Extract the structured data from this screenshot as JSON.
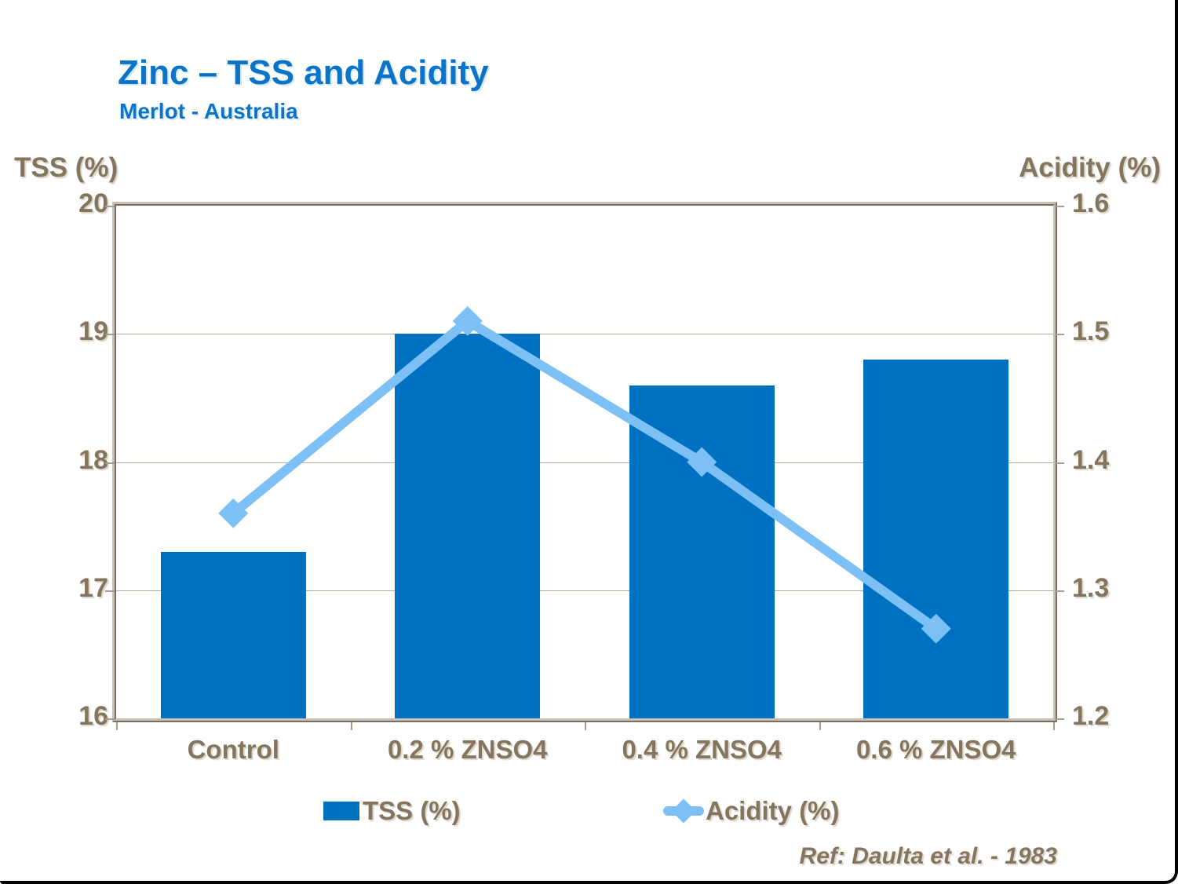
{
  "slide": {
    "title": "Zinc – TSS and Acidity",
    "subtitle": "Merlot - Australia",
    "ref": "Ref: Daulta et al. - 1983"
  },
  "chart_data": {
    "type": "bar",
    "subtype": "bar+line combo, dual axis",
    "title": "Zinc – TSS and Acidity",
    "subtitle": "Merlot - Australia",
    "categories": [
      "Control",
      "0.2 % ZNSO4",
      "0.4 % ZNSO4",
      "0.6 % ZNSO4"
    ],
    "series": [
      {
        "name": "TSS (%)",
        "type": "bar",
        "axis": "left",
        "values": [
          17.3,
          19.0,
          18.6,
          18.8
        ],
        "color": "#0070C0"
      },
      {
        "name": "Acidity (%)",
        "type": "line",
        "axis": "right",
        "marker": "diamond",
        "values": [
          1.36,
          1.51,
          1.4,
          1.27
        ],
        "color": "#7cc0f6"
      }
    ],
    "left_axis": {
      "label": "TSS (%)",
      "min": 16,
      "max": 20,
      "ticks": [
        "20",
        "19",
        "18",
        "17",
        "16"
      ]
    },
    "right_axis": {
      "label": "Acidity (%)",
      "min": 1.2,
      "max": 1.6,
      "ticks": [
        "1.6",
        "1.5",
        "1.4",
        "1.3",
        "1.2"
      ]
    },
    "grid": "horizontal gridlines on",
    "legend_position": "bottom",
    "legend": [
      {
        "label": "TSS (%)",
        "swatch": "bar-square",
        "color": "#0070C0"
      },
      {
        "label": "Acidity (%)",
        "swatch": "line-diamond",
        "color": "#7cc0f6"
      }
    ],
    "annotation": "Ref: Daulta et al. - 1983"
  },
  "colors": {
    "title_blue": "#0b74c9",
    "bar_blue": "#0070C0",
    "line_light_blue": "#7cc0f6",
    "axis_text_brown": "#85755e",
    "frame_tan": "#b3a89a",
    "slide_border_black": "#000000"
  },
  "icons": {
    "legend_bar_swatch": "bar-swatch-icon",
    "legend_line_marker": "diamond-marker-icon"
  }
}
